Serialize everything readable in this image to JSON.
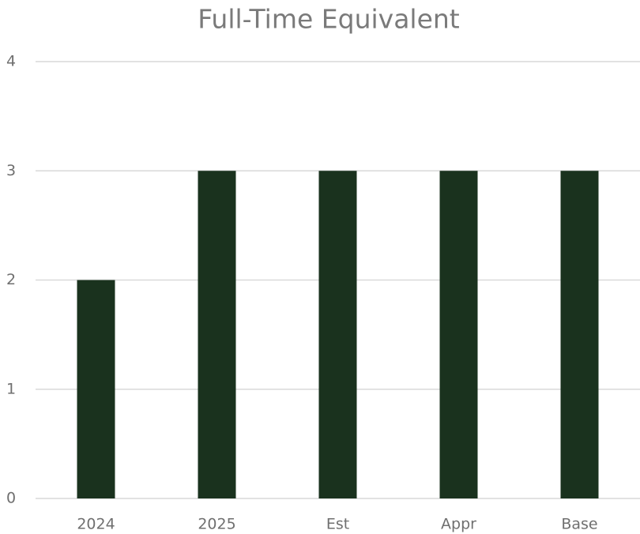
{
  "chart_data": {
    "type": "bar",
    "title": "Full-Time Equivalent",
    "categories": [
      "2024",
      "2025",
      "Est",
      "Appr",
      "Base"
    ],
    "values": [
      2,
      3,
      3,
      3,
      3
    ],
    "color": "#1a321e",
    "ylim": [
      0,
      4
    ],
    "yticks": [
      0,
      1,
      2,
      3,
      4
    ],
    "grid": true
  }
}
